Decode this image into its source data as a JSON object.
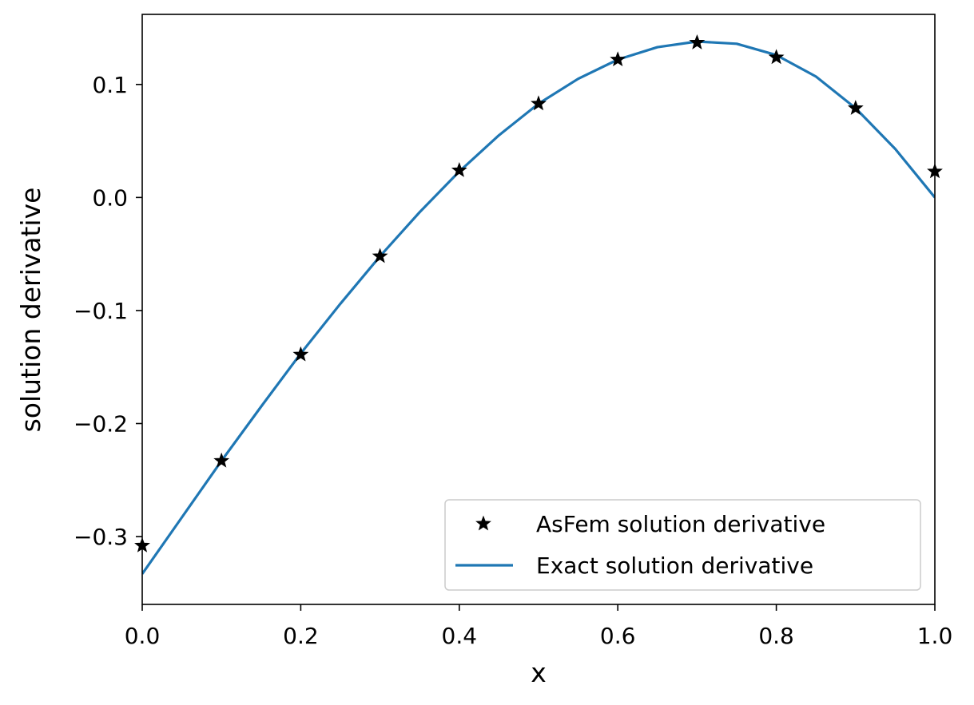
{
  "chart_data": {
    "type": "line",
    "xlabel": "x",
    "ylabel": "solution derivative",
    "xlim": [
      0.0,
      1.0
    ],
    "ylim": [
      -0.36,
      0.162
    ],
    "xticks": [
      0.0,
      0.2,
      0.4,
      0.6,
      0.8,
      1.0
    ],
    "xtick_labels": [
      "0.0",
      "0.2",
      "0.4",
      "0.6",
      "0.8",
      "1.0"
    ],
    "yticks": [
      -0.3,
      -0.2,
      -0.1,
      0.0,
      0.1
    ],
    "ytick_labels": [
      "−0.3",
      "−0.2",
      "−0.1",
      "0.0",
      "0.1"
    ],
    "grid": false,
    "legend_position": "lower-right",
    "series": [
      {
        "name": "AsFem solution derivative",
        "style": "star-markers",
        "color": "#000000",
        "x": [
          0.0,
          0.1,
          0.2,
          0.3,
          0.4,
          0.5,
          0.6,
          0.7,
          0.8,
          0.9,
          1.0
        ],
        "y": [
          -0.308,
          -0.233,
          -0.139,
          -0.052,
          0.024,
          0.083,
          0.122,
          0.137,
          0.124,
          0.079,
          0.023
        ]
      },
      {
        "name": "Exact solution derivative",
        "style": "line",
        "color": "#1f77b4",
        "x": [
          0.0,
          0.05,
          0.1,
          0.15,
          0.2,
          0.25,
          0.3,
          0.35,
          0.4,
          0.45,
          0.5,
          0.55,
          0.6,
          0.65,
          0.7,
          0.75,
          0.8,
          0.85,
          0.9,
          0.95,
          1.0
        ],
        "y": [
          -0.333,
          -0.283,
          -0.233,
          -0.185,
          -0.138,
          -0.094,
          -0.052,
          -0.013,
          0.023,
          0.055,
          0.083,
          0.105,
          0.122,
          0.133,
          0.138,
          0.136,
          0.126,
          0.107,
          0.079,
          0.043,
          0.0
        ]
      }
    ]
  }
}
